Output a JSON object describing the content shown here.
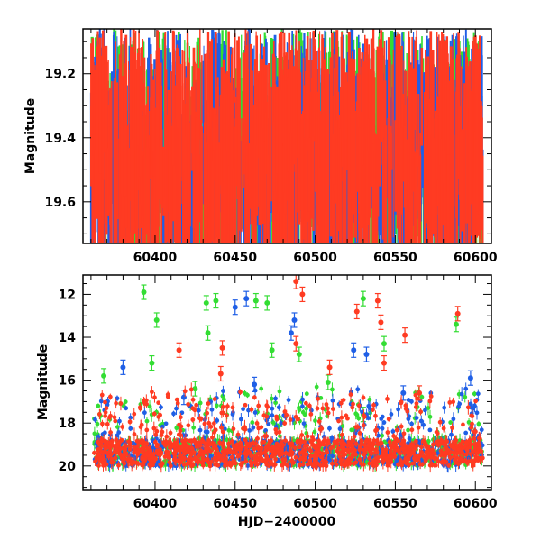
{
  "chart_data": [
    {
      "type": "scatter",
      "panel": "top",
      "xlabel": "",
      "ylabel": "Magnitude",
      "xlim": [
        60355,
        60610
      ],
      "ylim": [
        19.73,
        19.06
      ],
      "y_inverted": true,
      "x_ticks": [
        60400,
        60450,
        60500,
        60550,
        60600
      ],
      "y_ticks": [
        19.2,
        19.4,
        19.6
      ],
      "grid": false,
      "series": [
        {
          "color": "#33dd33",
          "x_range": [
            60360,
            60605
          ],
          "y_range": [
            19.06,
            19.73
          ]
        },
        {
          "color": "#1f5fe6",
          "x_range": [
            60360,
            60605
          ],
          "y_range": [
            19.06,
            19.73
          ]
        },
        {
          "color": "#ff3b22",
          "x_range": [
            60360,
            60605
          ],
          "y_range": [
            19.06,
            19.73
          ]
        }
      ]
    },
    {
      "type": "scatter",
      "panel": "bottom",
      "xlabel": "HJD−2400000",
      "ylabel": "Magnitude",
      "xlim": [
        60355,
        60610
      ],
      "ylim": [
        21.1,
        11.1
      ],
      "y_inverted": true,
      "x_ticks": [
        60400,
        60450,
        60500,
        60550,
        60600
      ],
      "y_ticks": [
        12,
        14,
        16,
        18,
        20
      ],
      "grid": false,
      "series": [
        {
          "color": "#33dd33",
          "points": [
            {
              "x": 60393,
              "y": 11.9
            },
            {
              "x": 60401,
              "y": 13.2
            },
            {
              "x": 60432,
              "y": 12.4
            },
            {
              "x": 60438,
              "y": 12.3
            },
            {
              "x": 60463,
              "y": 12.3
            },
            {
              "x": 60470,
              "y": 12.4
            },
            {
              "x": 60433,
              "y": 13.8
            },
            {
              "x": 60490,
              "y": 14.8
            },
            {
              "x": 60530,
              "y": 12.2
            },
            {
              "x": 60543,
              "y": 14.3
            },
            {
              "x": 60588,
              "y": 13.4
            },
            {
              "x": 60398,
              "y": 15.2
            },
            {
              "x": 60425,
              "y": 16.4
            },
            {
              "x": 60473,
              "y": 14.6
            },
            {
              "x": 60508,
              "y": 16.1
            },
            {
              "x": 60368,
              "y": 15.8
            },
            {
              "x": 60530,
              "y": 17.6
            }
          ]
        },
        {
          "color": "#1f5fe6",
          "points": [
            {
              "x": 60450,
              "y": 12.6
            },
            {
              "x": 60457,
              "y": 12.2
            },
            {
              "x": 60485,
              "y": 13.8
            },
            {
              "x": 60487,
              "y": 13.2
            },
            {
              "x": 60532,
              "y": 14.8
            },
            {
              "x": 60524,
              "y": 14.6
            },
            {
              "x": 60418,
              "y": 16.8
            },
            {
              "x": 60462,
              "y": 16.2
            },
            {
              "x": 60597,
              "y": 15.9
            },
            {
              "x": 60380,
              "y": 15.4
            },
            {
              "x": 60555,
              "y": 16.6
            }
          ]
        },
        {
          "color": "#ff3b22",
          "points": [
            {
              "x": 60488,
              "y": 11.4
            },
            {
              "x": 60492,
              "y": 12.0
            },
            {
              "x": 60526,
              "y": 12.8
            },
            {
              "x": 60539,
              "y": 12.3
            },
            {
              "x": 60541,
              "y": 13.3
            },
            {
              "x": 60589,
              "y": 12.9
            },
            {
              "x": 60556,
              "y": 13.9
            },
            {
              "x": 60415,
              "y": 14.6
            },
            {
              "x": 60442,
              "y": 14.5
            },
            {
              "x": 60488,
              "y": 14.3
            },
            {
              "x": 60509,
              "y": 15.4
            },
            {
              "x": 60441,
              "y": 15.7
            },
            {
              "x": 60543,
              "y": 15.2
            },
            {
              "x": 60565,
              "y": 16.6
            }
          ]
        }
      ]
    }
  ]
}
